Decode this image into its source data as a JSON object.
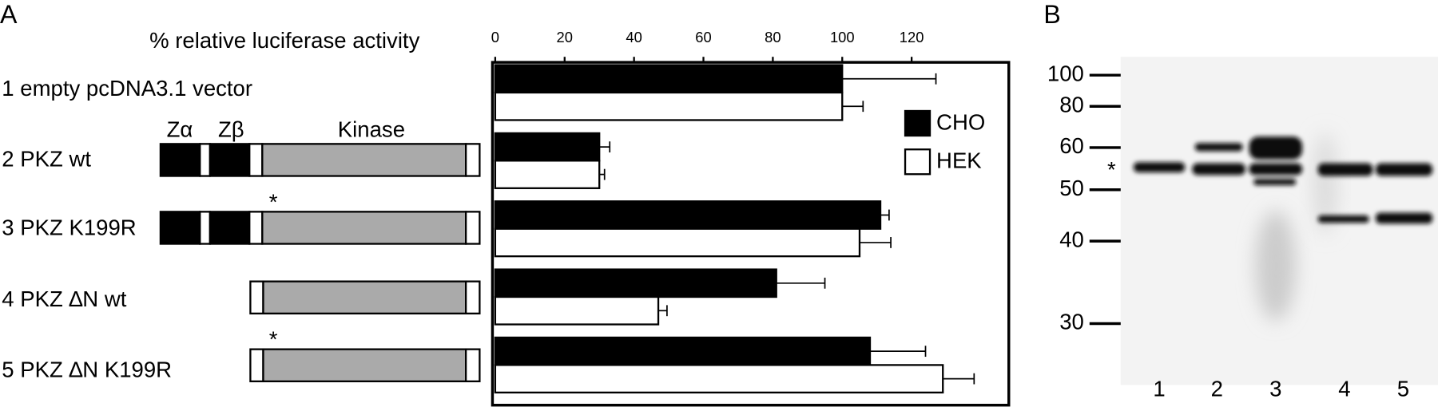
{
  "panel_labels": [
    "A",
    "B"
  ],
  "chart_data": {
    "type": "bar",
    "orientation": "horizontal",
    "x_label": "% relative luciferase activity",
    "categories": [
      "1 empty pcDNA3.1 vector",
      "2 PKZ wt",
      "3 PKZ K199R",
      "4 PKZ ∆N wt",
      "5 PKZ ∆N K199R"
    ],
    "series": [
      {
        "name": "CHO",
        "color": "#000000",
        "values": [
          100,
          30,
          111,
          81,
          108
        ],
        "errors": [
          27,
          3,
          2.5,
          14,
          16
        ]
      },
      {
        "name": "HEK",
        "color": "#ffffff",
        "values": [
          100,
          30,
          105,
          47,
          129
        ],
        "errors": [
          6,
          1.5,
          9,
          2.5,
          9
        ]
      }
    ],
    "xlim": [
      0,
      148
    ],
    "xticks": [
      0,
      20,
      40,
      60,
      80,
      100,
      120
    ]
  },
  "diagram": {
    "domains": [
      "Zα",
      "Zβ",
      "Kinase"
    ],
    "mutation_mark": "*"
  },
  "blot": {
    "markers": [
      100,
      80,
      60,
      50,
      40,
      30
    ],
    "lanes": [
      "1",
      "2",
      "3",
      "4",
      "5"
    ],
    "band_mark": "*"
  }
}
